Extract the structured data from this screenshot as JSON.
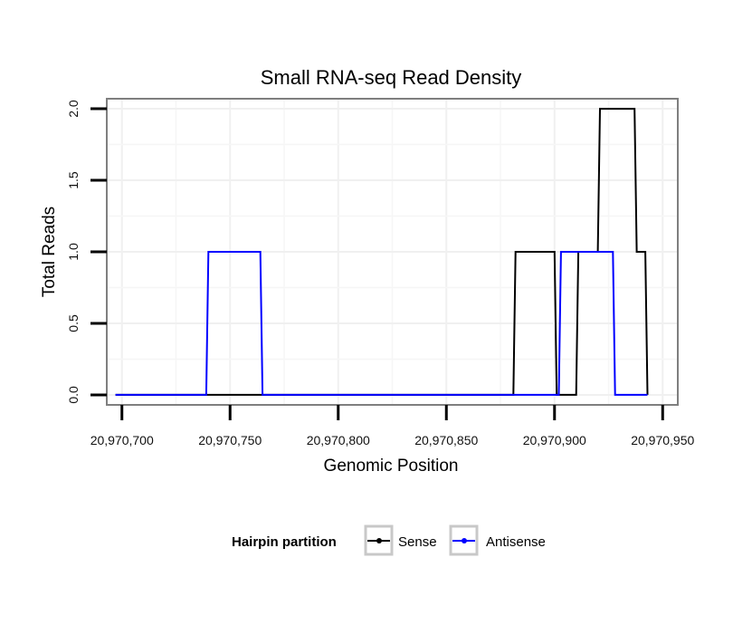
{
  "chart_data": {
    "type": "line",
    "title": "Small RNA-seq Read Density",
    "xlabel": "Genomic Position",
    "ylabel": "Total Reads",
    "xlim": [
      20970693,
      20970957
    ],
    "ylim": [
      -0.07,
      2.07
    ],
    "x_ticks": [
      20970700,
      20970750,
      20970800,
      20970850,
      20970900,
      20970950
    ],
    "x_tick_labels": [
      "20,970,700",
      "20,970,750",
      "20,970,800",
      "20,970,850",
      "20,970,900",
      "20,970,950"
    ],
    "y_ticks": [
      0,
      0.5,
      1,
      1.5,
      2
    ],
    "y_tick_labels": [
      "0.0",
      "0.5",
      "1.0",
      "1.5",
      "2.0"
    ],
    "grid": true,
    "legend": {
      "title": "Hairpin partition",
      "position": "bottom"
    },
    "series": [
      {
        "name": "Sense",
        "color": "#000000",
        "x": [
          20970697,
          20970881,
          20970882,
          20970900,
          20970901,
          20970910,
          20970911,
          20970920,
          20970921,
          20970937,
          20970938,
          20970942,
          20970943
        ],
        "y": [
          0,
          0,
          1,
          1,
          0,
          0,
          1,
          1,
          2,
          2,
          1,
          1,
          0
        ]
      },
      {
        "name": "Antisense",
        "color": "#0000ff",
        "x": [
          20970697,
          20970739,
          20970740,
          20970764,
          20970765,
          20970902,
          20970903,
          20970927,
          20970928,
          20970943
        ],
        "y": [
          0,
          0,
          1,
          1,
          0,
          0,
          1,
          1,
          0,
          0
        ]
      }
    ]
  }
}
